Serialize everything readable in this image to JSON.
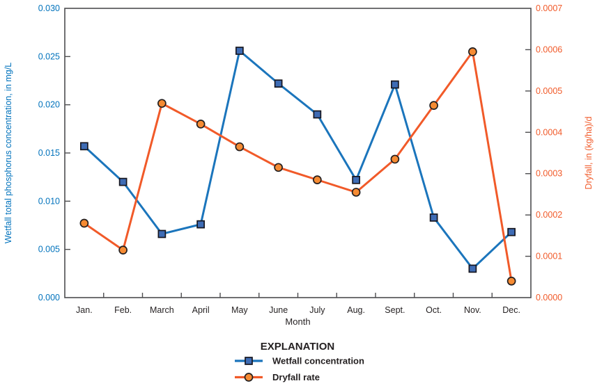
{
  "chart_data": {
    "type": "line",
    "title": "",
    "xlabel": "Month",
    "categories": [
      "Jan.",
      "Feb.",
      "March",
      "April",
      "May",
      "June",
      "July",
      "Aug.",
      "Sept.",
      "Oct.",
      "Nov.",
      "Dec."
    ],
    "grid": false,
    "frame_color": "#4d4d4f",
    "text_color": "#231f20",
    "left_axis": {
      "label": "Wetfall total phosphorus concentration, in mg/L",
      "range": [
        0.0,
        0.03
      ],
      "tick_labels": [
        "0.000",
        "0.005",
        "0.010",
        "0.015",
        "0.020",
        "0.025",
        "0.030"
      ],
      "color": "#0072bc"
    },
    "right_axis": {
      "label": "Dryfall, in (kg/ha)/d",
      "range": [
        0.0,
        0.0007
      ],
      "tick_labels": [
        "0.0000",
        "0.0001",
        "0.0002",
        "0.0003",
        "0.0004",
        "0.0005",
        "0.0006",
        "0.0007"
      ],
      "color": "#f15a29"
    },
    "series": [
      {
        "name": "Wetfall concentration",
        "axis": "left",
        "marker": "square",
        "line_color": "#1b75bc",
        "marker_fill": "#3e6cb5",
        "marker_stroke": "#16161f",
        "values": [
          0.0157,
          0.012,
          0.0066,
          0.0076,
          0.0256,
          0.0222,
          0.019,
          0.0122,
          0.0221,
          0.0083,
          0.003,
          0.0068
        ]
      },
      {
        "name": "Dryfall rate",
        "axis": "right",
        "marker": "circle",
        "line_color": "#f15a29",
        "marker_fill": "#f68b33",
        "marker_stroke": "#231f20",
        "values": [
          0.00018,
          0.000115,
          0.00047,
          0.00042,
          0.000365,
          0.000315,
          0.000285,
          0.000255,
          0.000335,
          0.000465,
          0.000595,
          4e-05
        ]
      }
    ],
    "legend": {
      "title": "EXPLANATION",
      "position": "bottom-center",
      "entries": [
        "Wetfall concentration",
        "Dryfall rate"
      ]
    }
  }
}
